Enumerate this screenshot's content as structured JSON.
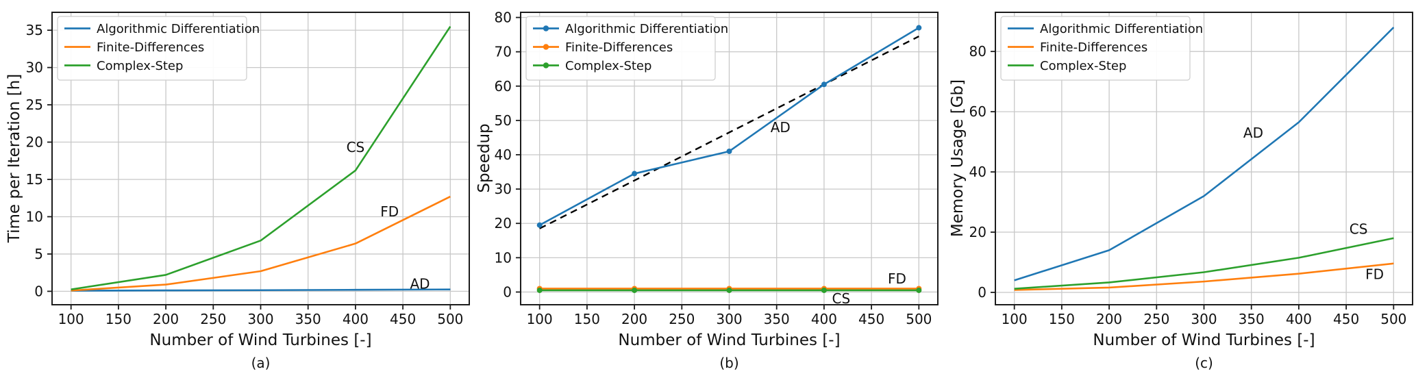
{
  "figure": {
    "background": "#ffffff",
    "grid_color": "#c8c8c8",
    "spine_color": "#1c1c1c",
    "tick_color": "#1c1c1c",
    "text_color": "#111111",
    "x_axis_label": "Number of Wind Turbines [-]"
  },
  "legend": {
    "items": [
      {
        "key": "AD",
        "label": "Algorithmic Differentiation",
        "color": "#1f77b4"
      },
      {
        "key": "FD",
        "label": "Finite-Differences",
        "color": "#ff7f0e"
      },
      {
        "key": "CS",
        "label": "Complex-Step",
        "color": "#2ca02c"
      }
    ]
  },
  "chart_data": [
    {
      "id": "a",
      "type": "line",
      "caption": "(a)",
      "xlabel": "Number of Wind Turbines [-]",
      "ylabel": "Time per Iteration [h]",
      "grid": true,
      "legend_position": "upper-left",
      "line_markers": false,
      "x": [
        100,
        200,
        300,
        400,
        500
      ],
      "xticks": [
        100,
        150,
        200,
        250,
        300,
        350,
        400,
        450,
        500
      ],
      "xlim": [
        80,
        520
      ],
      "yticks": [
        0,
        5,
        10,
        15,
        20,
        25,
        30,
        35
      ],
      "ylim": [
        -1.8,
        37.4
      ],
      "series": [
        {
          "name": "Algorithmic Differentiation",
          "short": "AD",
          "color": "#1f77b4",
          "values": [
            0.08,
            0.12,
            0.15,
            0.2,
            0.25
          ]
        },
        {
          "name": "Finite-Differences",
          "short": "FD",
          "color": "#ff7f0e",
          "values": [
            0.1,
            0.9,
            2.7,
            6.4,
            12.7
          ]
        },
        {
          "name": "Complex-Step",
          "short": "CS",
          "color": "#2ca02c",
          "values": [
            0.25,
            2.2,
            6.8,
            16.2,
            35.5
          ]
        }
      ],
      "trend_line": null,
      "annotations": [
        {
          "text": "CS",
          "x": 400,
          "y": 19.3
        },
        {
          "text": "FD",
          "x": 436,
          "y": 10.7
        },
        {
          "text": "AD",
          "x": 468,
          "y": 1.0
        }
      ]
    },
    {
      "id": "b",
      "type": "line",
      "caption": "(b)",
      "xlabel": "Number of Wind Turbines [-]",
      "ylabel": "Speedup",
      "grid": true,
      "legend_position": "upper-left",
      "line_markers": true,
      "x": [
        100,
        200,
        300,
        400,
        500
      ],
      "xticks": [
        100,
        150,
        200,
        250,
        300,
        350,
        400,
        450,
        500
      ],
      "xlim": [
        80,
        520
      ],
      "yticks": [
        0,
        10,
        20,
        30,
        40,
        50,
        60,
        70,
        80
      ],
      "ylim": [
        -3.7,
        81.5
      ],
      "series": [
        {
          "name": "Algorithmic Differentiation",
          "short": "AD",
          "color": "#1f77b4",
          "values": [
            19.5,
            34.5,
            41.0,
            60.5,
            77.0
          ]
        },
        {
          "name": "Finite-Differences",
          "short": "FD",
          "color": "#ff7f0e",
          "values": [
            1.0,
            1.0,
            1.0,
            1.0,
            1.0
          ]
        },
        {
          "name": "Complex-Step",
          "short": "CS",
          "color": "#2ca02c",
          "values": [
            0.5,
            0.5,
            0.5,
            0.5,
            0.5
          ]
        }
      ],
      "trend_line": {
        "color": "#000000",
        "dashed": true,
        "x": [
          100,
          500
        ],
        "values": [
          18.5,
          74.5
        ]
      },
      "annotations": [
        {
          "text": "AD",
          "x": 354,
          "y": 48.0
        },
        {
          "text": "FD",
          "x": 477,
          "y": 3.9
        },
        {
          "text": "CS",
          "x": 418,
          "y": -1.9
        }
      ]
    },
    {
      "id": "c",
      "type": "line",
      "caption": "(c)",
      "xlabel": "Number of Wind Turbines [-]",
      "ylabel": "Memory Usage [Gb]",
      "grid": true,
      "legend_position": "upper-left",
      "line_markers": false,
      "x": [
        100,
        200,
        300,
        400,
        500
      ],
      "xticks": [
        100,
        150,
        200,
        250,
        300,
        350,
        400,
        450,
        500
      ],
      "xlim": [
        80,
        520
      ],
      "yticks": [
        0,
        20,
        40,
        60,
        80
      ],
      "ylim": [
        -4.1,
        93.0
      ],
      "series": [
        {
          "name": "Algorithmic Differentiation",
          "short": "AD",
          "color": "#1f77b4",
          "values": [
            4.0,
            14.0,
            32.0,
            56.5,
            88.0
          ]
        },
        {
          "name": "Finite-Differences",
          "short": "FD",
          "color": "#ff7f0e",
          "values": [
            0.8,
            1.6,
            3.6,
            6.2,
            9.6
          ]
        },
        {
          "name": "Complex-Step",
          "short": "CS",
          "color": "#2ca02c",
          "values": [
            1.2,
            3.3,
            6.7,
            11.5,
            18.0
          ]
        }
      ],
      "trend_line": null,
      "annotations": [
        {
          "text": "AD",
          "x": 352,
          "y": 53.0
        },
        {
          "text": "CS",
          "x": 463,
          "y": 21.0
        },
        {
          "text": "FD",
          "x": 480,
          "y": 6.0
        }
      ]
    }
  ]
}
